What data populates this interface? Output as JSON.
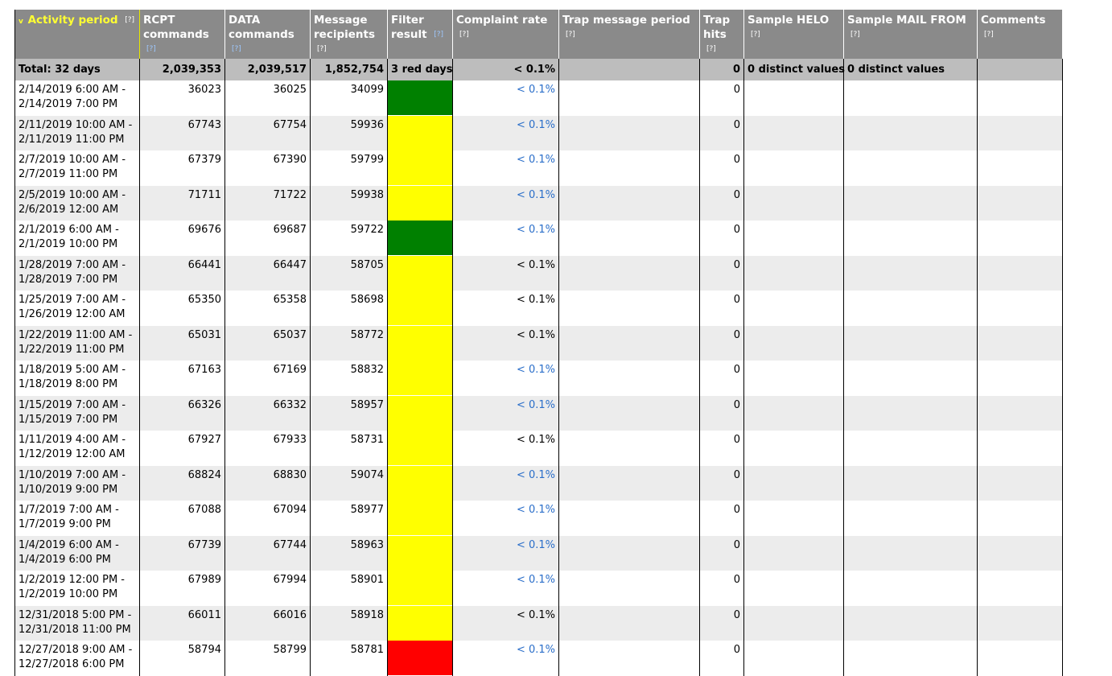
{
  "colors": {
    "green": "#008000",
    "yellow": "#ffff00",
    "red": "#ff0000",
    "header_bg": "#8a8a8a",
    "sorted_header": "#ffff33",
    "link": "#2a6ec9"
  },
  "headers": {
    "sort_arrow": "v",
    "help": "[?]",
    "activity_period": "Activity period",
    "rcpt_commands": "RCPT commands",
    "data_commands": "DATA commands",
    "message_recipients": "Message recipients",
    "filter_result": "Filter result",
    "complaint_rate": "Complaint rate",
    "trap_message_period": "Trap message period",
    "trap_hits": "Trap hits",
    "sample_helo": "Sample HELO",
    "sample_mail_from": "Sample MAIL FROM",
    "comments": "Comments"
  },
  "total": {
    "label": "Total: 32 days",
    "rcpt": "2,039,353",
    "data": "2,039,517",
    "recipients": "1,852,754",
    "filter": "3 red days",
    "complaint": "< 0.1%",
    "trap_period": "",
    "trap_hits": "0",
    "helo": "0 distinct values",
    "mail_from": "0 distinct values",
    "comments": ""
  },
  "rows": [
    {
      "p1": "2/14/2019 6:00 AM -",
      "p2": "2/14/2019 7:00 PM",
      "rcpt": "36023",
      "data": "36025",
      "recip": "34099",
      "filter": "green",
      "cr": "< 0.1%",
      "cr_link": true,
      "trap": "0"
    },
    {
      "p1": "2/11/2019 10:00 AM -",
      "p2": "2/11/2019 11:00 PM",
      "rcpt": "67743",
      "data": "67754",
      "recip": "59936",
      "filter": "yellow",
      "cr": "< 0.1%",
      "cr_link": true,
      "trap": "0"
    },
    {
      "p1": "2/7/2019 10:00 AM -",
      "p2": "2/7/2019 11:00 PM",
      "rcpt": "67379",
      "data": "67390",
      "recip": "59799",
      "filter": "yellow",
      "cr": "< 0.1%",
      "cr_link": true,
      "trap": "0"
    },
    {
      "p1": "2/5/2019 10:00 AM -",
      "p2": "2/6/2019 12:00 AM",
      "rcpt": "71711",
      "data": "71722",
      "recip": "59938",
      "filter": "yellow",
      "cr": "< 0.1%",
      "cr_link": true,
      "trap": "0"
    },
    {
      "p1": "2/1/2019 6:00 AM -",
      "p2": "2/1/2019 10:00 PM",
      "rcpt": "69676",
      "data": "69687",
      "recip": "59722",
      "filter": "green",
      "cr": "< 0.1%",
      "cr_link": true,
      "trap": "0"
    },
    {
      "p1": "1/28/2019 7:00 AM -",
      "p2": "1/28/2019 7:00 PM",
      "rcpt": "66441",
      "data": "66447",
      "recip": "58705",
      "filter": "yellow",
      "cr": "< 0.1%",
      "cr_link": false,
      "trap": "0"
    },
    {
      "p1": "1/25/2019 7:00 AM -",
      "p2": "1/26/2019 12:00 AM",
      "rcpt": "65350",
      "data": "65358",
      "recip": "58698",
      "filter": "yellow",
      "cr": "< 0.1%",
      "cr_link": false,
      "trap": "0"
    },
    {
      "p1": "1/22/2019 11:00 AM -",
      "p2": "1/22/2019 11:00 PM",
      "rcpt": "65031",
      "data": "65037",
      "recip": "58772",
      "filter": "yellow",
      "cr": "< 0.1%",
      "cr_link": false,
      "trap": "0"
    },
    {
      "p1": "1/18/2019 5:00 AM -",
      "p2": "1/18/2019 8:00 PM",
      "rcpt": "67163",
      "data": "67169",
      "recip": "58832",
      "filter": "yellow",
      "cr": "< 0.1%",
      "cr_link": true,
      "trap": "0"
    },
    {
      "p1": "1/15/2019 7:00 AM -",
      "p2": "1/15/2019 7:00 PM",
      "rcpt": "66326",
      "data": "66332",
      "recip": "58957",
      "filter": "yellow",
      "cr": "< 0.1%",
      "cr_link": true,
      "trap": "0"
    },
    {
      "p1": "1/11/2019 4:00 AM -",
      "p2": "1/12/2019 12:00 AM",
      "rcpt": "67927",
      "data": "67933",
      "recip": "58731",
      "filter": "yellow",
      "cr": "< 0.1%",
      "cr_link": false,
      "trap": "0"
    },
    {
      "p1": "1/10/2019 7:00 AM -",
      "p2": "1/10/2019 9:00 PM",
      "rcpt": "68824",
      "data": "68830",
      "recip": "59074",
      "filter": "yellow",
      "cr": "< 0.1%",
      "cr_link": true,
      "trap": "0"
    },
    {
      "p1": "1/7/2019 7:00 AM -",
      "p2": "1/7/2019 9:00 PM",
      "rcpt": "67088",
      "data": "67094",
      "recip": "58977",
      "filter": "yellow",
      "cr": "< 0.1%",
      "cr_link": true,
      "trap": "0"
    },
    {
      "p1": "1/4/2019 6:00 AM -",
      "p2": "1/4/2019 6:00 PM",
      "rcpt": "67739",
      "data": "67744",
      "recip": "58963",
      "filter": "yellow",
      "cr": "< 0.1%",
      "cr_link": true,
      "trap": "0"
    },
    {
      "p1": "1/2/2019 12:00 PM -",
      "p2": "1/2/2019 10:00 PM",
      "rcpt": "67989",
      "data": "67994",
      "recip": "58901",
      "filter": "yellow",
      "cr": "< 0.1%",
      "cr_link": true,
      "trap": "0"
    },
    {
      "p1": "12/31/2018 5:00 PM -",
      "p2": "12/31/2018 11:00 PM",
      "rcpt": "66011",
      "data": "66016",
      "recip": "58918",
      "filter": "yellow",
      "cr": "< 0.1%",
      "cr_link": false,
      "trap": "0"
    },
    {
      "p1": "12/27/2018 9:00 AM -",
      "p2": "12/27/2018 6:00 PM",
      "rcpt": "58794",
      "data": "58799",
      "recip": "58781",
      "filter": "red",
      "cr": "< 0.1%",
      "cr_link": true,
      "trap": "0"
    }
  ]
}
